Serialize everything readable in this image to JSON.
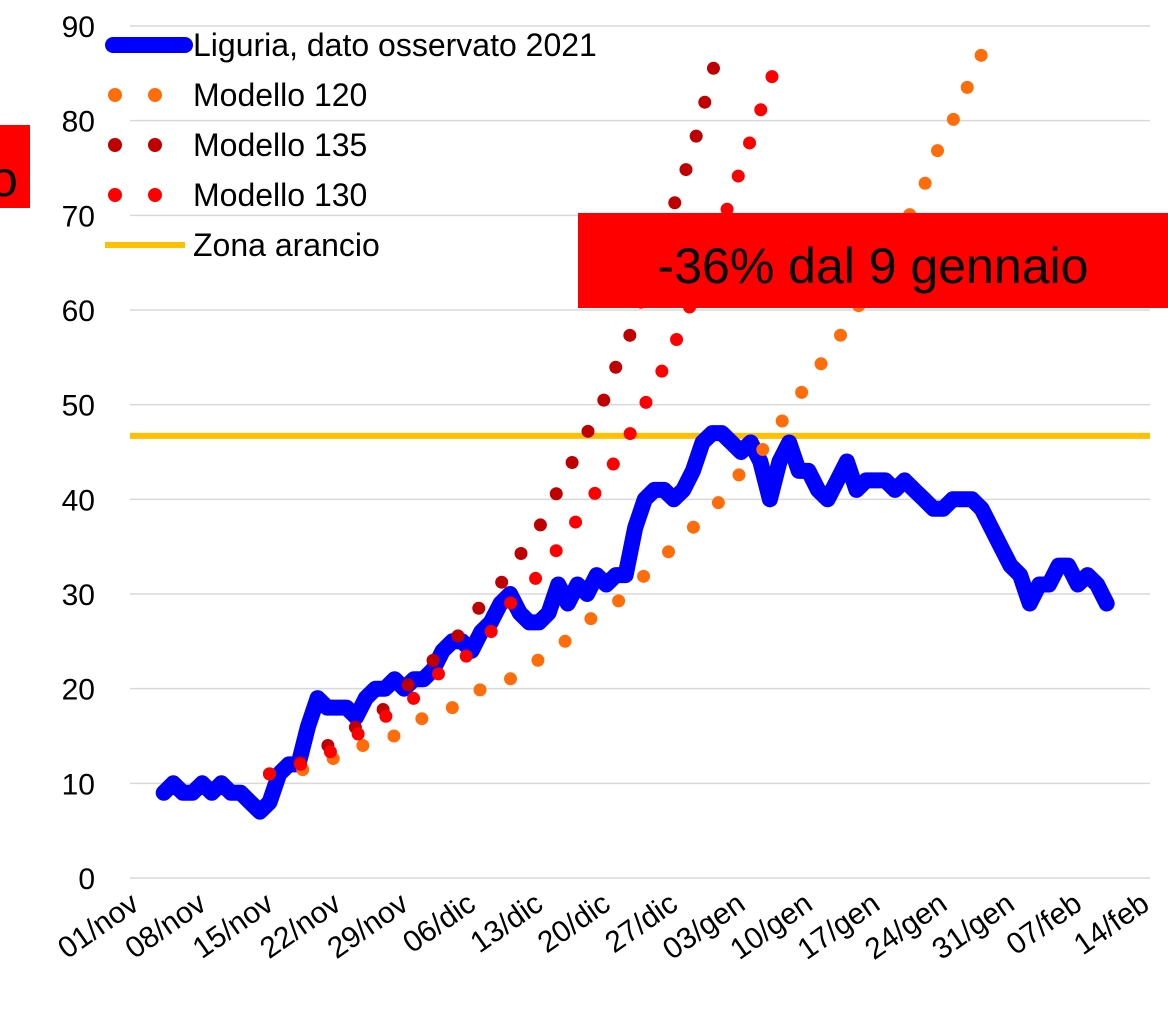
{
  "chart_data": {
    "type": "line",
    "categories": [
      "01/nov",
      null,
      null,
      null,
      null,
      null,
      null,
      "08/nov",
      null,
      null,
      null,
      null,
      null,
      null,
      "15/nov",
      null,
      null,
      null,
      null,
      null,
      null,
      "22/nov",
      null,
      null,
      null,
      null,
      null,
      null,
      "29/nov",
      null,
      null,
      null,
      null,
      null,
      null,
      "06/dic",
      null,
      null,
      null,
      null,
      null,
      null,
      "13/dic",
      null,
      null,
      null,
      null,
      null,
      null,
      "20/dic",
      null,
      null,
      null,
      null,
      null,
      null,
      "27/dic",
      null,
      null,
      null,
      null,
      null,
      null,
      "03/gen",
      null,
      null,
      null,
      null,
      null,
      null,
      "10/gen",
      null,
      null,
      null,
      null,
      null,
      null,
      "17/gen",
      null,
      null,
      null,
      null,
      null,
      null,
      "24/gen",
      null,
      null,
      null,
      null,
      null,
      null,
      "31/gen",
      null,
      null,
      null,
      null,
      null,
      null,
      "07/feb",
      null,
      null,
      null,
      null,
      null,
      null,
      "14/feb"
    ],
    "series": [
      {
        "name": "Liguria, dato osservato 2021",
        "color": "#0000ff",
        "style": "solid",
        "values": [
          null,
          null,
          null,
          9,
          10,
          9,
          9,
          10,
          9,
          10,
          9,
          9,
          8,
          7,
          8,
          11,
          12,
          12,
          16,
          19,
          18,
          18,
          18,
          17,
          19,
          20,
          20,
          21,
          20,
          21,
          21,
          22,
          24,
          25,
          25,
          24,
          26,
          27,
          29,
          30,
          28,
          27,
          27,
          28,
          31,
          29,
          31,
          30,
          32,
          31,
          32,
          32,
          37,
          40,
          41,
          41,
          40,
          41,
          43,
          46,
          47,
          47,
          46,
          45,
          46,
          44,
          40,
          44,
          46,
          43,
          43,
          41,
          40,
          42,
          44,
          41,
          42,
          42,
          42,
          41,
          42,
          41,
          40,
          39,
          39,
          40,
          40,
          40,
          39,
          37,
          35,
          33,
          32,
          29,
          31,
          31,
          33,
          33,
          31,
          32,
          31,
          29,
          null,
          null,
          null,
          null
        ]
      },
      {
        "name": "Modello 120",
        "color": "#ff6d0a",
        "style": "dotted",
        "values": [
          null,
          null,
          null,
          null,
          null,
          null,
          null,
          null,
          null,
          null,
          null,
          null,
          null,
          null,
          11,
          11,
          11,
          11,
          12,
          12,
          12,
          13,
          13,
          14,
          14,
          14,
          15,
          15,
          16,
          16,
          17,
          17,
          18,
          18,
          19,
          19,
          20,
          20,
          21,
          21,
          22,
          23,
          23,
          24,
          25,
          25,
          26,
          27,
          28,
          29,
          29,
          30,
          31,
          32,
          33,
          34,
          35,
          36,
          37,
          38,
          39,
          40,
          41,
          43,
          44,
          45,
          46,
          48,
          49,
          51,
          52,
          54,
          55,
          57,
          58,
          60,
          62,
          64,
          65,
          67,
          69,
          71,
          73,
          76,
          78,
          80,
          82,
          85,
          87,
          90,
          null,
          null,
          null,
          null,
          null,
          null,
          null,
          null,
          null,
          null,
          null,
          null,
          null,
          null,
          null,
          null
        ]
      },
      {
        "name": "Modello 135",
        "color": "#c00000",
        "style": "dotted",
        "values": [
          null,
          null,
          null,
          null,
          null,
          null,
          null,
          null,
          null,
          null,
          null,
          null,
          null,
          null,
          11,
          11,
          12,
          12,
          13,
          13,
          14,
          14,
          15,
          16,
          17,
          17,
          18,
          19,
          20,
          21,
          22,
          23,
          24,
          25,
          26,
          27,
          29,
          30,
          31,
          33,
          34,
          36,
          37,
          39,
          41,
          43,
          45,
          47,
          49,
          51,
          54,
          56,
          59,
          62,
          65,
          68,
          71,
          74,
          77,
          81,
          85,
          89,
          null,
          null,
          null,
          null,
          null,
          null,
          null,
          null,
          null,
          null,
          null,
          null,
          null,
          null,
          null,
          null,
          null,
          null,
          null,
          null,
          null,
          null,
          null,
          null,
          null,
          null,
          null,
          null,
          null,
          null,
          null,
          null,
          null,
          null,
          null,
          null,
          null,
          null,
          null,
          null,
          null,
          null,
          null,
          null
        ]
      },
      {
        "name": "Modello 130",
        "color": "#ff0000",
        "style": "dotted",
        "values": [
          null,
          null,
          null,
          null,
          null,
          null,
          null,
          null,
          null,
          null,
          null,
          null,
          null,
          null,
          11,
          11,
          11,
          12,
          12,
          13,
          13,
          14,
          14,
          15,
          16,
          16,
          17,
          18,
          18,
          19,
          20,
          21,
          22,
          22,
          23,
          24,
          25,
          26,
          27,
          29,
          30,
          31,
          32,
          33,
          35,
          36,
          38,
          39,
          41,
          43,
          44,
          46,
          48,
          50,
          52,
          54,
          56,
          59,
          61,
          63,
          66,
          69,
          72,
          75,
          78,
          81,
          84,
          87,
          null,
          null,
          null,
          null,
          null,
          null,
          null,
          null,
          null,
          null,
          null,
          null,
          null,
          null,
          null,
          null,
          null,
          null,
          null,
          null,
          null,
          null,
          null,
          null,
          null,
          null,
          null,
          null,
          null,
          null,
          null,
          null,
          null,
          null,
          null,
          null,
          null,
          null
        ]
      }
    ],
    "reference_lines": [
      {
        "name": "Zona arancio",
        "color": "#ffc000",
        "value": 46.7
      }
    ],
    "ylim": [
      0,
      90
    ],
    "yticks": [
      0,
      10,
      20,
      30,
      40,
      50,
      60,
      70,
      80,
      90
    ],
    "grid": true,
    "legend": "top-left",
    "annotations": [
      {
        "text": "-36% dal 9 gennaio",
        "color": "#ff0000"
      },
      {
        "text": "o",
        "color": "#ff0000"
      }
    ]
  }
}
